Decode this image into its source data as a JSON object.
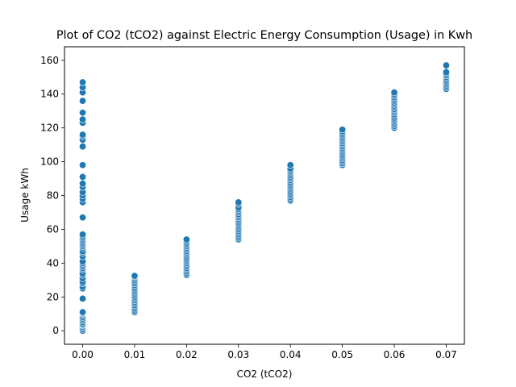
{
  "chart_data": {
    "type": "scatter",
    "title": "Plot of CO2 (tCO2) against Electric Energy Consumption (Usage) in Kwh",
    "xlabel": "CO2 (tCO2)",
    "ylabel": "Usage kWh",
    "xlim": [
      -0.0035,
      0.0735
    ],
    "ylim": [
      -8,
      168
    ],
    "xticks": [
      0.0,
      0.01,
      0.02,
      0.03,
      0.04,
      0.05,
      0.06,
      0.07
    ],
    "xtick_labels": [
      "0.00",
      "0.01",
      "0.02",
      "0.03",
      "0.04",
      "0.05",
      "0.06",
      "0.07"
    ],
    "yticks": [
      0,
      20,
      40,
      60,
      80,
      100,
      120,
      140,
      160
    ],
    "ytick_labels": [
      "0",
      "20",
      "40",
      "60",
      "80",
      "100",
      "120",
      "140",
      "160"
    ],
    "grid": false,
    "marker_color": "#1f77b4",
    "marker_edge": "#ffffff",
    "series": [
      {
        "x": [
          0.0,
          0.0,
          0.0,
          0.0,
          0.0,
          0.0,
          0.0,
          0.0,
          0.0,
          0.0,
          0.0,
          0.0,
          0.0,
          0.0,
          0.0,
          0.0,
          0.0,
          0.0,
          0.0,
          0.0,
          0.0,
          0.0,
          0.0,
          0.0,
          0.0,
          0.0,
          0.0,
          0.0,
          0.0,
          0.0,
          0.0,
          0.0,
          0.0,
          0.0,
          0.0,
          0.0,
          0.0,
          0.0,
          0.0,
          0.0,
          0.0,
          0.0,
          0.0,
          0.0,
          0.0,
          0.0,
          0.0,
          0.0,
          0.0,
          0.0,
          0.0,
          0.0,
          0.0,
          0.0,
          0.0,
          0.0,
          0.0,
          0.0,
          0.0,
          0.0,
          0.01,
          0.01,
          0.01,
          0.01,
          0.01,
          0.01,
          0.01,
          0.01,
          0.01,
          0.01,
          0.01,
          0.01,
          0.01,
          0.01,
          0.01,
          0.01,
          0.01,
          0.01,
          0.01,
          0.01,
          0.01,
          0.01,
          0.01,
          0.02,
          0.02,
          0.02,
          0.02,
          0.02,
          0.02,
          0.02,
          0.02,
          0.02,
          0.02,
          0.02,
          0.02,
          0.02,
          0.02,
          0.02,
          0.02,
          0.02,
          0.02,
          0.02,
          0.02,
          0.02,
          0.02,
          0.03,
          0.03,
          0.03,
          0.03,
          0.03,
          0.03,
          0.03,
          0.03,
          0.03,
          0.03,
          0.03,
          0.03,
          0.03,
          0.03,
          0.03,
          0.03,
          0.03,
          0.03,
          0.03,
          0.03,
          0.03,
          0.03,
          0.04,
          0.04,
          0.04,
          0.04,
          0.04,
          0.04,
          0.04,
          0.04,
          0.04,
          0.04,
          0.04,
          0.04,
          0.04,
          0.04,
          0.04,
          0.04,
          0.04,
          0.04,
          0.04,
          0.04,
          0.04,
          0.05,
          0.05,
          0.05,
          0.05,
          0.05,
          0.05,
          0.05,
          0.05,
          0.05,
          0.05,
          0.05,
          0.05,
          0.05,
          0.05,
          0.05,
          0.05,
          0.05,
          0.05,
          0.05,
          0.05,
          0.05,
          0.05,
          0.06,
          0.06,
          0.06,
          0.06,
          0.06,
          0.06,
          0.06,
          0.06,
          0.06,
          0.06,
          0.06,
          0.06,
          0.06,
          0.06,
          0.06,
          0.06,
          0.06,
          0.06,
          0.06,
          0.06,
          0.06,
          0.06,
          0.07,
          0.07,
          0.07,
          0.07,
          0.07,
          0.07,
          0.07,
          0.07,
          0.07,
          0.07,
          0.07,
          0.07
        ],
        "y": [
          0,
          1,
          2,
          3,
          3.5,
          4,
          5,
          6,
          7,
          8,
          9,
          10,
          10.5,
          11,
          19,
          25,
          26,
          28,
          29,
          31,
          33,
          34,
          36,
          37,
          38,
          39,
          40,
          41,
          44,
          46,
          47,
          49,
          50,
          51,
          52,
          53,
          54,
          55,
          56,
          57,
          67,
          76,
          78,
          80,
          82,
          85,
          87,
          91,
          98,
          109,
          113,
          115,
          116,
          123,
          125,
          129,
          136,
          141,
          144,
          147,
          11,
          12,
          13,
          14,
          15,
          16,
          17,
          18,
          19,
          20,
          21,
          22,
          23,
          24,
          25,
          26,
          27,
          28,
          29,
          30,
          31,
          32,
          32.5,
          33,
          34,
          35,
          36,
          37,
          38,
          39,
          40,
          41,
          42,
          43,
          44,
          45,
          46,
          47,
          48,
          49,
          50,
          51,
          52,
          53,
          54,
          54,
          55,
          56,
          57,
          58,
          59,
          60,
          61,
          62,
          63,
          64,
          65,
          66,
          67,
          68,
          69,
          70,
          71,
          72,
          73,
          75,
          76,
          77,
          78,
          79,
          80,
          81,
          82,
          83,
          84,
          85,
          86,
          87,
          88,
          89,
          90,
          91,
          92,
          93,
          94,
          95,
          96,
          98,
          98,
          99,
          100,
          101,
          102,
          103,
          104,
          105,
          106,
          107,
          108,
          109,
          110,
          111,
          112,
          113,
          114,
          115,
          116,
          117,
          118,
          119,
          120,
          121,
          122,
          123,
          124,
          125,
          126,
          127,
          128,
          129,
          130,
          131,
          132,
          133,
          134,
          135,
          136,
          137,
          138,
          139,
          140,
          141,
          143,
          144,
          145,
          146,
          147,
          148,
          149,
          150,
          151,
          152,
          153,
          157
        ]
      }
    ]
  }
}
